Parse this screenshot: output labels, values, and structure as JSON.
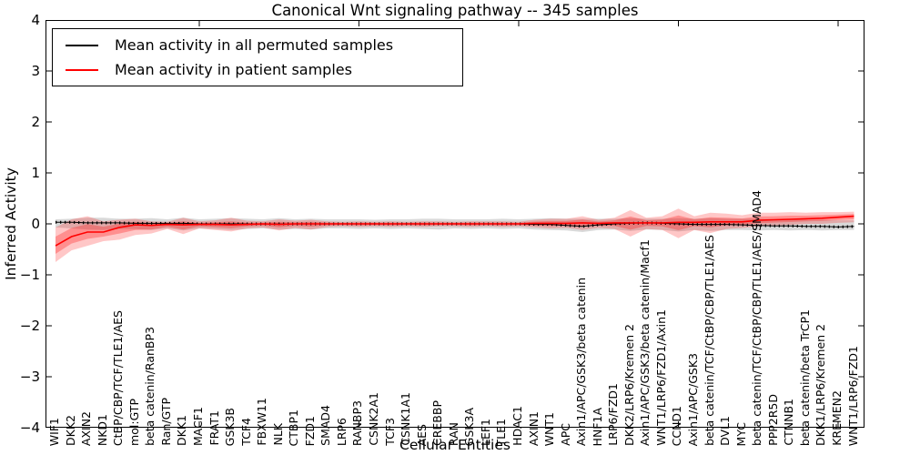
{
  "title": "Canonical Wnt signaling pathway -- 345 samples",
  "axes": {
    "ylabel": "Inferred Activity",
    "xlabel": "Cellular Entities",
    "yticks": [
      4,
      3,
      2,
      1,
      0,
      -1,
      -2,
      -3,
      -4
    ],
    "ylim": [
      -4,
      4
    ]
  },
  "legend": {
    "position": "upper left",
    "items": [
      {
        "label": "Mean activity in all permuted samples",
        "color": "#000000"
      },
      {
        "label": "Mean activity in patient samples",
        "color": "#ff0000"
      }
    ]
  },
  "colors": {
    "patient_line": "#ff0000",
    "patient_band": "#ff0000",
    "permuted_line": "#000000",
    "permuted_band": "#808080",
    "frame": "#000000",
    "background": "#ffffff"
  },
  "chart_data": {
    "type": "line",
    "title": "Canonical Wnt signaling pathway -- 345 samples",
    "xlabel": "Cellular Entities",
    "ylabel": "Inferred Activity",
    "ylim": [
      -4,
      4
    ],
    "grid": false,
    "legend_position": "upper left",
    "categories": [
      "WIF1",
      "DKK2",
      "AXIN2",
      "NKD1",
      "CtBP/CBP/TCF/TLE1/AES",
      "mol:GTP",
      "beta catenin/RanBP3",
      "Ran/GTP",
      "DKK1",
      "MACF1",
      "FRAT1",
      "GSK3B",
      "TCF4",
      "FBXW11",
      "NLK",
      "CTBP1",
      "FZD1",
      "SMAD4",
      "LRP6",
      "RANBP3",
      "CSNK2A1",
      "TCF3",
      "CSNK1A1",
      "AES",
      "CREBBP",
      "RAN",
      "GSK3A",
      "LEF1",
      "TLE1",
      "HDAC1",
      "AXIN1",
      "WNT1",
      "APC",
      "Axin1/APC/GSK3/beta catenin",
      "HNF1A",
      "LRP6/FZD1",
      "DKK2/LRP6/Kremen 2",
      "Axin1/APC/GSK3/beta catenin/Macf1",
      "WNT1/LRP6/FZD1/Axin1",
      "CCND1",
      "Axin1/APC/GSK3",
      "beta catenin/TCF/CtBP/CBP/TLE1/AES",
      "DVL1",
      "MYC",
      "beta catenin/TCF/CtBP/CBP/TLE1/AES/SMAD4",
      "PPP2R5D",
      "CTNNB1",
      "beta catenin/beta TrCP1",
      "DKK1/LRP6/Kremen 2",
      "KREMEN2",
      "WNT1/LRP6/FZD1"
    ],
    "series": [
      {
        "name": "Mean activity in all permuted samples",
        "color": "#000000",
        "values": [
          0.03,
          0.03,
          0.02,
          0.02,
          0.02,
          0.01,
          0.01,
          0.01,
          0.01,
          0,
          0,
          0,
          0,
          0,
          0,
          0,
          0,
          0,
          0,
          0,
          0,
          0,
          0,
          0,
          0,
          0,
          0,
          0,
          0,
          0,
          -0.01,
          -0.01,
          -0.03,
          -0.05,
          -0.02,
          0,
          0.01,
          0.02,
          0.01,
          0,
          -0.01,
          -0.01,
          -0.01,
          -0.02,
          -0.03,
          -0.04,
          -0.04,
          -0.05,
          -0.05,
          -0.06,
          -0.05
        ],
        "band_lower": [
          -0.07,
          -0.09,
          -0.11,
          -0.12,
          -0.1,
          -0.1,
          -0.12,
          -0.09,
          -0.13,
          -0.09,
          -0.1,
          -0.12,
          -0.1,
          -0.09,
          -0.11,
          -0.1,
          -0.11,
          -0.09,
          -0.09,
          -0.1,
          -0.09,
          -0.1,
          -0.09,
          -0.1,
          -0.11,
          -0.09,
          -0.1,
          -0.09,
          -0.1,
          -0.09,
          -0.11,
          -0.12,
          -0.13,
          -0.16,
          -0.12,
          -0.11,
          -0.14,
          -0.11,
          -0.12,
          -0.15,
          -0.12,
          -0.14,
          -0.12,
          -0.12,
          -0.13,
          -0.12,
          -0.13,
          -0.12,
          -0.13,
          -0.12,
          -0.12
        ],
        "band_upper": [
          0.09,
          0.1,
          0.12,
          0.12,
          0.1,
          0.1,
          0.11,
          0.09,
          0.12,
          0.09,
          0.1,
          0.11,
          0.1,
          0.09,
          0.11,
          0.09,
          0.1,
          0.09,
          0.09,
          0.09,
          0.08,
          0.09,
          0.09,
          0.1,
          0.1,
          0.09,
          0.09,
          0.09,
          0.1,
          0.09,
          0.1,
          0.11,
          0.1,
          0.1,
          0.1,
          0.1,
          0.11,
          0.1,
          0.1,
          0.11,
          0.1,
          0.11,
          0.1,
          0.1,
          0.1,
          0.09,
          0.09,
          0.08,
          0.08,
          0.07,
          0.07
        ]
      },
      {
        "name": "Mean activity in patient samples",
        "color": "#ff0000",
        "values": [
          -0.43,
          -0.25,
          -0.16,
          -0.16,
          -0.07,
          -0.02,
          -0.03,
          -0.01,
          -0.02,
          -0.01,
          -0.01,
          -0.02,
          -0.01,
          0,
          -0.01,
          0,
          0,
          0,
          0,
          0,
          0,
          0,
          0,
          0,
          0,
          0,
          0,
          0,
          0,
          0,
          0.01,
          0.01,
          0.01,
          0.02,
          0.01,
          0.02,
          0.02,
          0.02,
          0.02,
          0.03,
          0.03,
          0.04,
          0.04,
          0.04,
          0.07,
          0.08,
          0.09,
          0.1,
          0.11,
          0.13,
          0.15
        ],
        "band_lower": [
          -0.75,
          -0.52,
          -0.43,
          -0.34,
          -0.31,
          -0.22,
          -0.19,
          -0.1,
          -0.2,
          -0.09,
          -0.12,
          -0.15,
          -0.09,
          -0.07,
          -0.13,
          -0.08,
          -0.11,
          -0.06,
          -0.05,
          -0.06,
          -0.05,
          -0.06,
          -0.05,
          -0.06,
          -0.05,
          -0.05,
          -0.06,
          -0.05,
          -0.06,
          -0.05,
          -0.07,
          -0.09,
          -0.08,
          -0.12,
          -0.08,
          -0.1,
          -0.25,
          -0.1,
          -0.12,
          -0.28,
          -0.12,
          -0.18,
          -0.1,
          -0.08,
          -0.05,
          -0.03,
          -0.02,
          0.0,
          0.0,
          0.02,
          0.03
        ],
        "band_upper": [
          -0.07,
          0.09,
          0.15,
          0.05,
          0.08,
          0.1,
          0.05,
          0.04,
          0.12,
          0.05,
          0.07,
          0.12,
          0.06,
          0.05,
          0.09,
          0.06,
          0.08,
          0.05,
          0.04,
          0.05,
          0.04,
          0.05,
          0.04,
          0.05,
          0.05,
          0.04,
          0.05,
          0.05,
          0.05,
          0.04,
          0.08,
          0.1,
          0.1,
          0.15,
          0.08,
          0.12,
          0.27,
          0.12,
          0.15,
          0.3,
          0.15,
          0.22,
          0.2,
          0.17,
          0.22,
          0.22,
          0.23,
          0.22,
          0.23,
          0.23,
          0.24
        ]
      }
    ]
  }
}
